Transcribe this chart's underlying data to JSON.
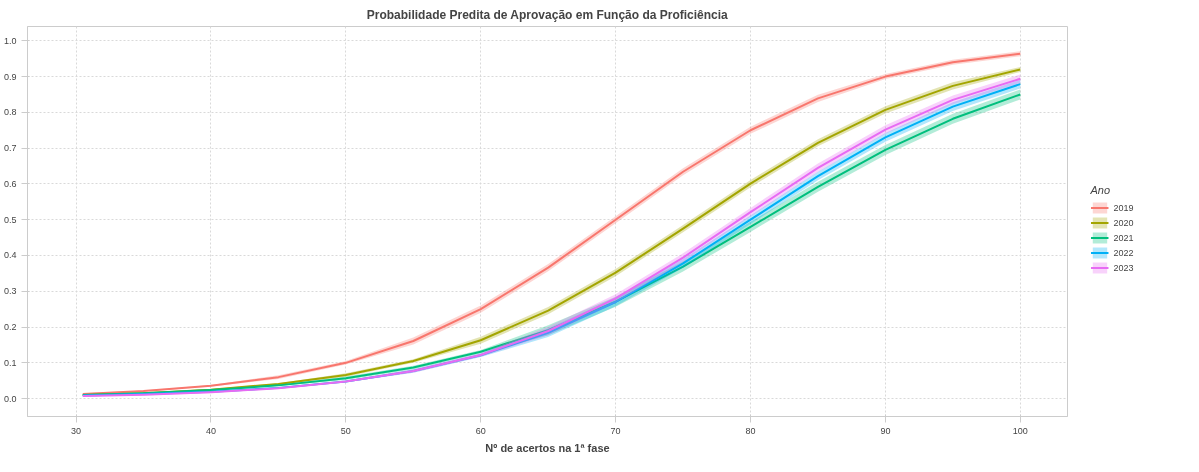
{
  "chart_data": {
    "type": "line",
    "title": "Probabilidade Predita de Aprovação em Função da Proficiência",
    "xlabel": "Nº de acertos na 1ª fase",
    "legend_title": "Ano",
    "legend": "right",
    "grid": true,
    "line_style": "solid",
    "marker": "none",
    "x": [
      30.5,
      35,
      40,
      45,
      50,
      55,
      60,
      65,
      70,
      75,
      80,
      85,
      90,
      95,
      100
    ],
    "xlim": [
      26.4,
      103.5
    ],
    "xticks": [
      30,
      40,
      50,
      60,
      70,
      80,
      90,
      100
    ],
    "ylim": [
      -0.05,
      1.04
    ],
    "yticks": [
      {
        "value": 0,
        "label": "0.0"
      },
      0.1,
      0.2,
      0.3,
      0.4,
      0.5,
      0.6,
      0.7,
      0.8,
      0.9,
      {
        "value": 1,
        "label": "1.0"
      }
    ],
    "series": [
      {
        "name": "2019",
        "color": "#f8766d",
        "values": [
          0.013,
          0.021,
          0.036,
          0.06,
          0.1,
          0.161,
          0.25,
          0.366,
          0.5,
          0.634,
          0.75,
          0.839,
          0.9,
          0.94,
          0.964
        ],
        "lower": [
          0.011,
          0.019,
          0.034,
          0.055,
          0.095,
          0.151,
          0.24,
          0.356,
          0.49,
          0.624,
          0.74,
          0.829,
          0.893,
          0.933,
          0.957
        ],
        "upper": [
          0.015,
          0.023,
          0.038,
          0.065,
          0.105,
          0.171,
          0.26,
          0.376,
          0.51,
          0.644,
          0.76,
          0.849,
          0.907,
          0.947,
          0.971
        ]
      },
      {
        "name": "2020",
        "color": "#a3a500",
        "values": [
          0.01,
          0.015,
          0.025,
          0.041,
          0.066,
          0.105,
          0.163,
          0.246,
          0.352,
          0.475,
          0.601,
          0.715,
          0.807,
          0.874,
          0.92
        ],
        "lower": [
          0.008,
          0.013,
          0.023,
          0.039,
          0.061,
          0.1,
          0.153,
          0.236,
          0.342,
          0.465,
          0.591,
          0.705,
          0.797,
          0.864,
          0.913
        ],
        "upper": [
          0.012,
          0.017,
          0.027,
          0.043,
          0.071,
          0.11,
          0.173,
          0.256,
          0.362,
          0.485,
          0.611,
          0.725,
          0.817,
          0.884,
          0.927
        ]
      },
      {
        "name": "2021",
        "color": "#00bf7d",
        "values": [
          0.01,
          0.015,
          0.024,
          0.037,
          0.057,
          0.087,
          0.131,
          0.191,
          0.271,
          0.369,
          0.48,
          0.592,
          0.695,
          0.782,
          0.85
        ],
        "lower": [
          0.008,
          0.013,
          0.022,
          0.035,
          0.052,
          0.082,
          0.126,
          0.177,
          0.257,
          0.355,
          0.466,
          0.578,
          0.681,
          0.768,
          0.836
        ],
        "upper": [
          0.012,
          0.017,
          0.026,
          0.039,
          0.062,
          0.092,
          0.136,
          0.205,
          0.285,
          0.383,
          0.494,
          0.606,
          0.709,
          0.796,
          0.864
        ]
      },
      {
        "name": "2022",
        "color": "#00b0f6",
        "values": [
          0.009,
          0.013,
          0.019,
          0.03,
          0.048,
          0.077,
          0.121,
          0.184,
          0.27,
          0.378,
          0.5,
          0.622,
          0.73,
          0.816,
          0.879
        ],
        "lower": [
          0.007,
          0.011,
          0.017,
          0.028,
          0.046,
          0.072,
          0.116,
          0.172,
          0.258,
          0.366,
          0.488,
          0.61,
          0.718,
          0.804,
          0.867
        ],
        "upper": [
          0.011,
          0.015,
          0.021,
          0.032,
          0.05,
          0.082,
          0.126,
          0.196,
          0.282,
          0.39,
          0.512,
          0.634,
          0.742,
          0.828,
          0.891
        ]
      },
      {
        "name": "2023",
        "color": "#e76bf3",
        "values": [
          0.007,
          0.011,
          0.018,
          0.029,
          0.048,
          0.077,
          0.122,
          0.189,
          0.28,
          0.394,
          0.521,
          0.645,
          0.752,
          0.835,
          0.894
        ],
        "lower": [
          0.005,
          0.009,
          0.016,
          0.027,
          0.046,
          0.072,
          0.117,
          0.177,
          0.268,
          0.382,
          0.509,
          0.633,
          0.74,
          0.823,
          0.882
        ],
        "upper": [
          0.009,
          0.013,
          0.02,
          0.031,
          0.05,
          0.082,
          0.127,
          0.201,
          0.292,
          0.406,
          0.533,
          0.657,
          0.764,
          0.847,
          0.906
        ]
      }
    ]
  }
}
